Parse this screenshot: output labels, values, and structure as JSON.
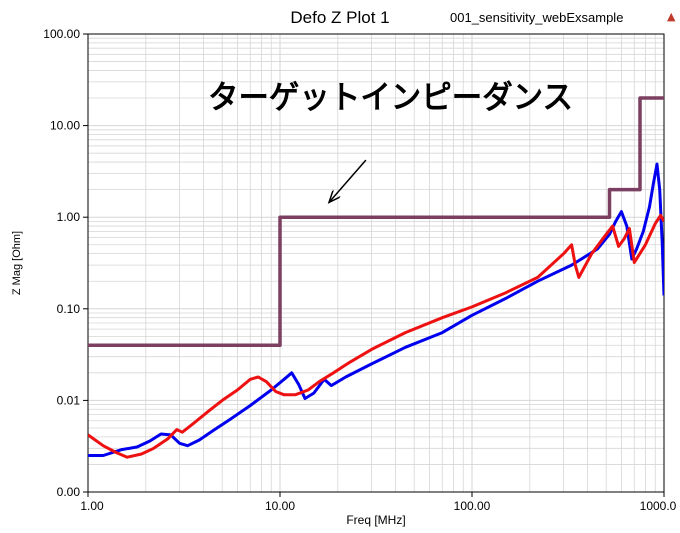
{
  "header": {
    "title": "Defo Z Plot 1",
    "subtitle": "001_sensitivity_webExsample",
    "corner_icon": "ansys-logo-icon"
  },
  "colors": {
    "target": "#7b3f61",
    "blue": "#0000ee",
    "red": "#ee1111",
    "grid": "#d6d6d6",
    "axis": "#000000"
  },
  "chart_data": {
    "type": "line",
    "xlabel": "Freq [MHz]",
    "ylabel": "Z Mag [Ohm]",
    "x_scale": "log",
    "y_scale": "log",
    "xlim": [
      1,
      1000
    ],
    "ylim": [
      0.001,
      100
    ],
    "x_ticks": [
      1,
      10,
      100,
      1000
    ],
    "x_tick_labels": [
      "1.00",
      "10.00",
      "100.00",
      "1000.0"
    ],
    "y_ticks": [
      0.001,
      0.01,
      0.1,
      1,
      10,
      100
    ],
    "y_tick_labels": [
      "0.00",
      "0.01",
      "0.10",
      "1.00",
      "10.00",
      "100.00"
    ],
    "grid": true,
    "annotation": {
      "text": "ターゲットインピーダンス",
      "arrow_from": [
        28,
        4.2
      ],
      "arrow_to": [
        18,
        1.45
      ]
    },
    "series": [
      {
        "name": "",
        "color": "#7b3f61",
        "x": [
          1,
          10,
          10,
          520,
          520,
          750,
          750,
          1000
        ],
        "y": [
          0.04,
          0.04,
          1.0,
          1.0,
          2.0,
          2.0,
          20.0,
          20.0
        ]
      },
      {
        "name": "",
        "color": "#0000ee",
        "x": [
          1,
          1.2,
          1.5,
          1.8,
          2.1,
          2.4,
          2.7,
          3.0,
          3.3,
          3.8,
          4.5,
          5.5,
          7,
          9,
          10.5,
          11.5,
          12.5,
          13.5,
          15,
          17,
          18.5,
          22,
          30,
          45,
          70,
          100,
          150,
          220,
          330,
          450,
          520,
          560,
          600,
          640,
          680,
          720,
          780,
          840,
          880,
          920,
          950,
          980,
          1000
        ],
        "y": [
          0.0025,
          0.0025,
          0.0029,
          0.0031,
          0.0036,
          0.0043,
          0.0042,
          0.0034,
          0.0032,
          0.0037,
          0.0047,
          0.0062,
          0.0088,
          0.013,
          0.017,
          0.02,
          0.015,
          0.0105,
          0.012,
          0.017,
          0.0145,
          0.018,
          0.025,
          0.038,
          0.055,
          0.085,
          0.13,
          0.2,
          0.3,
          0.45,
          0.65,
          0.9,
          1.15,
          0.8,
          0.35,
          0.45,
          0.7,
          1.3,
          2.3,
          3.8,
          2.0,
          0.5,
          0.14
        ]
      },
      {
        "name": "",
        "color": "#ee1111",
        "x": [
          1,
          1.2,
          1.4,
          1.6,
          1.9,
          2.2,
          2.6,
          2.9,
          3.1,
          3.5,
          4.2,
          5,
          6,
          7,
          7.7,
          8.5,
          9.5,
          10.5,
          12,
          14,
          16,
          19,
          23,
          30,
          45,
          70,
          100,
          150,
          220,
          300,
          330,
          345,
          360,
          420,
          500,
          540,
          580,
          620,
          660,
          700,
          800,
          900,
          960,
          1000
        ],
        "y": [
          0.0042,
          0.0032,
          0.0027,
          0.0024,
          0.0026,
          0.003,
          0.0038,
          0.0048,
          0.0045,
          0.0055,
          0.0075,
          0.01,
          0.013,
          0.017,
          0.018,
          0.016,
          0.0125,
          0.0115,
          0.0115,
          0.013,
          0.016,
          0.02,
          0.026,
          0.036,
          0.055,
          0.08,
          0.105,
          0.15,
          0.22,
          0.4,
          0.5,
          0.3,
          0.22,
          0.4,
          0.65,
          0.8,
          0.48,
          0.58,
          0.75,
          0.32,
          0.5,
          0.85,
          1.05,
          0.9
        ]
      }
    ]
  }
}
